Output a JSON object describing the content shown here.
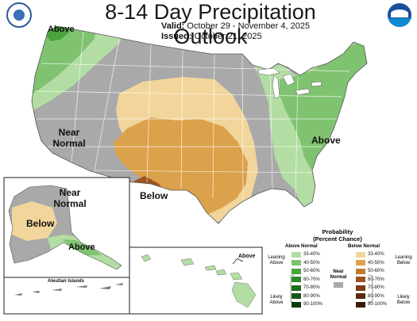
{
  "header": {
    "title": "8-14 Day Precipitation Outlook",
    "valid_label": "Valid:",
    "valid_value": "October 29 - November 4, 2025",
    "issued_label": "Issued:",
    "issued_value": "October 21, 2025"
  },
  "map_labels": {
    "above_nw": "Above",
    "near_normal_west_1": "Near",
    "near_normal_west_2": "Normal",
    "above_east": "Above",
    "below_sw": "Below",
    "alaska_near_1": "Near",
    "alaska_near_2": "Normal",
    "alaska_below": "Below",
    "alaska_above": "Above",
    "hawaii_above": "Above",
    "aleutian": "Aleutian Islands"
  },
  "legend": {
    "title_1": "Probability",
    "title_2": "(Percent Chance)",
    "above_header": "Above Normal",
    "below_header": "Below Normal",
    "near_label_1": "Near",
    "near_label_2": "Normal",
    "leaning_above_1": "Leaning",
    "leaning_above_2": "Above",
    "likely_above_1": "Likely",
    "likely_above_2": "Above",
    "leaning_below_1": "Leaning",
    "leaning_below_2": "Below",
    "likely_below_1": "Likely",
    "likely_below_2": "Below",
    "ranges": [
      "33-40%",
      "40-50%",
      "50-60%",
      "60-70%",
      "70-80%",
      "80-90%",
      "90-100%"
    ],
    "above_colors": [
      "#b3dda3",
      "#7fc370",
      "#4aa33f",
      "#2f8a2a",
      "#1e6e1d",
      "#145614",
      "#0a3d0a"
    ],
    "below_colors": [
      "#f1d59a",
      "#dca14b",
      "#c27a2c",
      "#9b5420",
      "#7a3e18",
      "#5a2a10",
      "#3b1a08"
    ],
    "near_color": "#a9a9a9"
  },
  "logos": {
    "left": "doc-seal",
    "right": "noaa-logo"
  }
}
